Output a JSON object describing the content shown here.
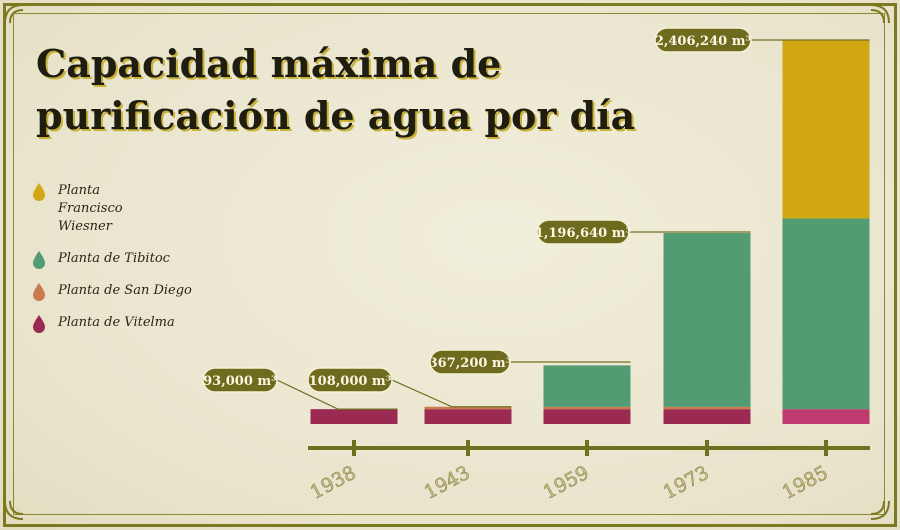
{
  "title": "Capacidad máxima de purificación de agua por día",
  "legend": [
    {
      "label": "Planta Francisco Wiesner",
      "color": "#d1a814"
    },
    {
      "label": "Planta de Tibitoc",
      "color": "#539b72"
    },
    {
      "label": "Planta de San Diego",
      "color": "#c97b4e"
    },
    {
      "label": "Planta de Vitelma",
      "color": "#9a2a52"
    }
  ],
  "chart_data": {
    "type": "bar",
    "stacked": true,
    "title": "Capacidad máxima de purificación de agua por día",
    "xlabel": "",
    "ylabel": "",
    "categories": [
      "1938",
      "1943",
      "1959",
      "1973",
      "1985"
    ],
    "series": [
      {
        "name": "Planta de Vitelma",
        "color": "#9a2a52",
        "values": [
          93000,
          93000,
          93000,
          93000,
          93000
        ]
      },
      {
        "name": "Planta de San Diego",
        "color": "#c97b4e",
        "values": [
          0,
          15000,
          15000,
          15000,
          0
        ]
      },
      {
        "name": "Planta de Tibitoc",
        "color": "#539b72",
        "values": [
          0,
          0,
          259200,
          1088640,
          1195000
        ]
      },
      {
        "name": "Planta Francisco Wiesner",
        "color": "#d1a814",
        "values": [
          0,
          0,
          0,
          0,
          1118240
        ]
      }
    ],
    "totals": [
      "93,000 m³",
      "108,000 m³",
      "367,200 m³",
      "1,196,640 m³",
      "2,406,240 m³"
    ],
    "ylim": [
      0,
      2406240
    ],
    "grid": false,
    "legend_position": "left",
    "colors": {
      "axis": "#707022",
      "label_bg": "#6e6a1e",
      "label_text": "#fbf7e2",
      "last_vitelma": "#bf3a6e"
    }
  }
}
